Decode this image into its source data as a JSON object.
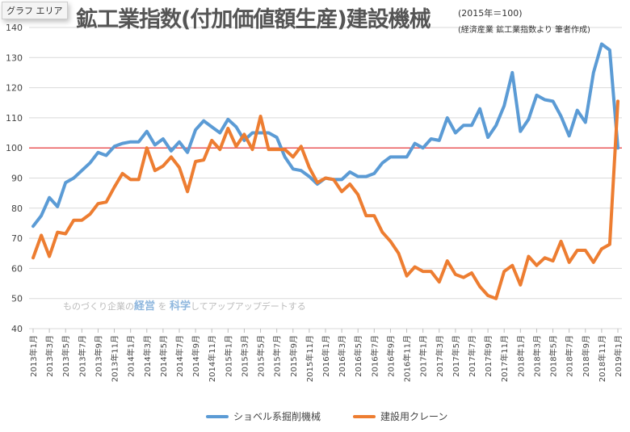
{
  "title": "鉱工業指数(付加価値額生産)建設機械",
  "subtitle_base": "(2015年＝100)",
  "subtitle_source": "(経済産業  鉱工業指数より  筆者作成)",
  "tooltip": "グラフ エリア",
  "watermark": {
    "pre": "ものづくり企業の",
    "b1": "経営",
    "mid": " を ",
    "b2": "科学",
    "post": "してアップアップデートする"
  },
  "chart_data": {
    "type": "line",
    "title": "鉱工業指数(付加価値額生産)建設機械",
    "ylim": [
      40,
      140
    ],
    "yticks": [
      40,
      50,
      60,
      70,
      80,
      90,
      100,
      110,
      120,
      130,
      140
    ],
    "grid": true,
    "legend_placement": "bottom",
    "reference_line": {
      "value": 100,
      "color": "#e8262a"
    },
    "x_tick_labels": [
      "2013年1月",
      "2013年3月",
      "2013年5月",
      "2013年7月",
      "2013年9月",
      "2013年11月",
      "2014年1月",
      "2014年3月",
      "2014年5月",
      "2014年7月",
      "2014年9月",
      "2014年11月",
      "2015年1月",
      "2015年3月",
      "2015年5月",
      "2015年7月",
      "2015年9月",
      "2015年11月",
      "2016年1月",
      "2016年3月",
      "2016年5月",
      "2016年7月",
      "2016年9月",
      "2016年11月",
      "2017年1月",
      "2017年3月",
      "2017年5月",
      "2017年7月",
      "2017年9月",
      "2017年11月",
      "2018年1月",
      "2018年3月",
      "2018年5月",
      "2018年7月",
      "2018年9月",
      "2018年11月",
      "2019年1月"
    ],
    "x_range": [
      "2013年1月",
      "2019年1月"
    ],
    "series": [
      {
        "name": "ショベル系掘削機械",
        "color": "#5b9bd5",
        "values": [
          74,
          77.5,
          83.5,
          80.5,
          88.5,
          90,
          92.5,
          95,
          98.5,
          97.5,
          100.5,
          101.5,
          102,
          102,
          105.5,
          101,
          103,
          99,
          102,
          98.5,
          106,
          109,
          107,
          105,
          109.5,
          107,
          102.5,
          105,
          105,
          105,
          103.5,
          97,
          93,
          92.5,
          90.5,
          88,
          90,
          89.5,
          89.5,
          92,
          90.5,
          90.5,
          91.5,
          95,
          97,
          97,
          97,
          101.5,
          100,
          103,
          102.5,
          110,
          105,
          107.5,
          107.5,
          113,
          103.5,
          107.5,
          114,
          125,
          105.5,
          109.5,
          117.5,
          116,
          115.5,
          110.5,
          104,
          112.5,
          108.5,
          125,
          134.5,
          132.5,
          100
        ]
      },
      {
        "name": "建設用クレーン",
        "color": "#ed7d31",
        "values": [
          63.5,
          71,
          64,
          72,
          71.5,
          76,
          76,
          78,
          81.5,
          82,
          87,
          91.5,
          89.5,
          89.5,
          100,
          92.5,
          94,
          97,
          93.5,
          85.5,
          95.5,
          96,
          102.5,
          99.5,
          106.5,
          100.5,
          104.5,
          99.5,
          110.5,
          99.5,
          99.5,
          99.5,
          97,
          100.5,
          93.5,
          88.5,
          90,
          89.5,
          85.5,
          88,
          84.5,
          77.5,
          77.5,
          72,
          69,
          65,
          57.5,
          60.5,
          59,
          59,
          55.5,
          62.5,
          58,
          57,
          58.5,
          54,
          51,
          50,
          59,
          61,
          54.5,
          64,
          61,
          63.5,
          62.5,
          69,
          62,
          66,
          66,
          62,
          66.5,
          68,
          115.5
        ]
      }
    ]
  }
}
